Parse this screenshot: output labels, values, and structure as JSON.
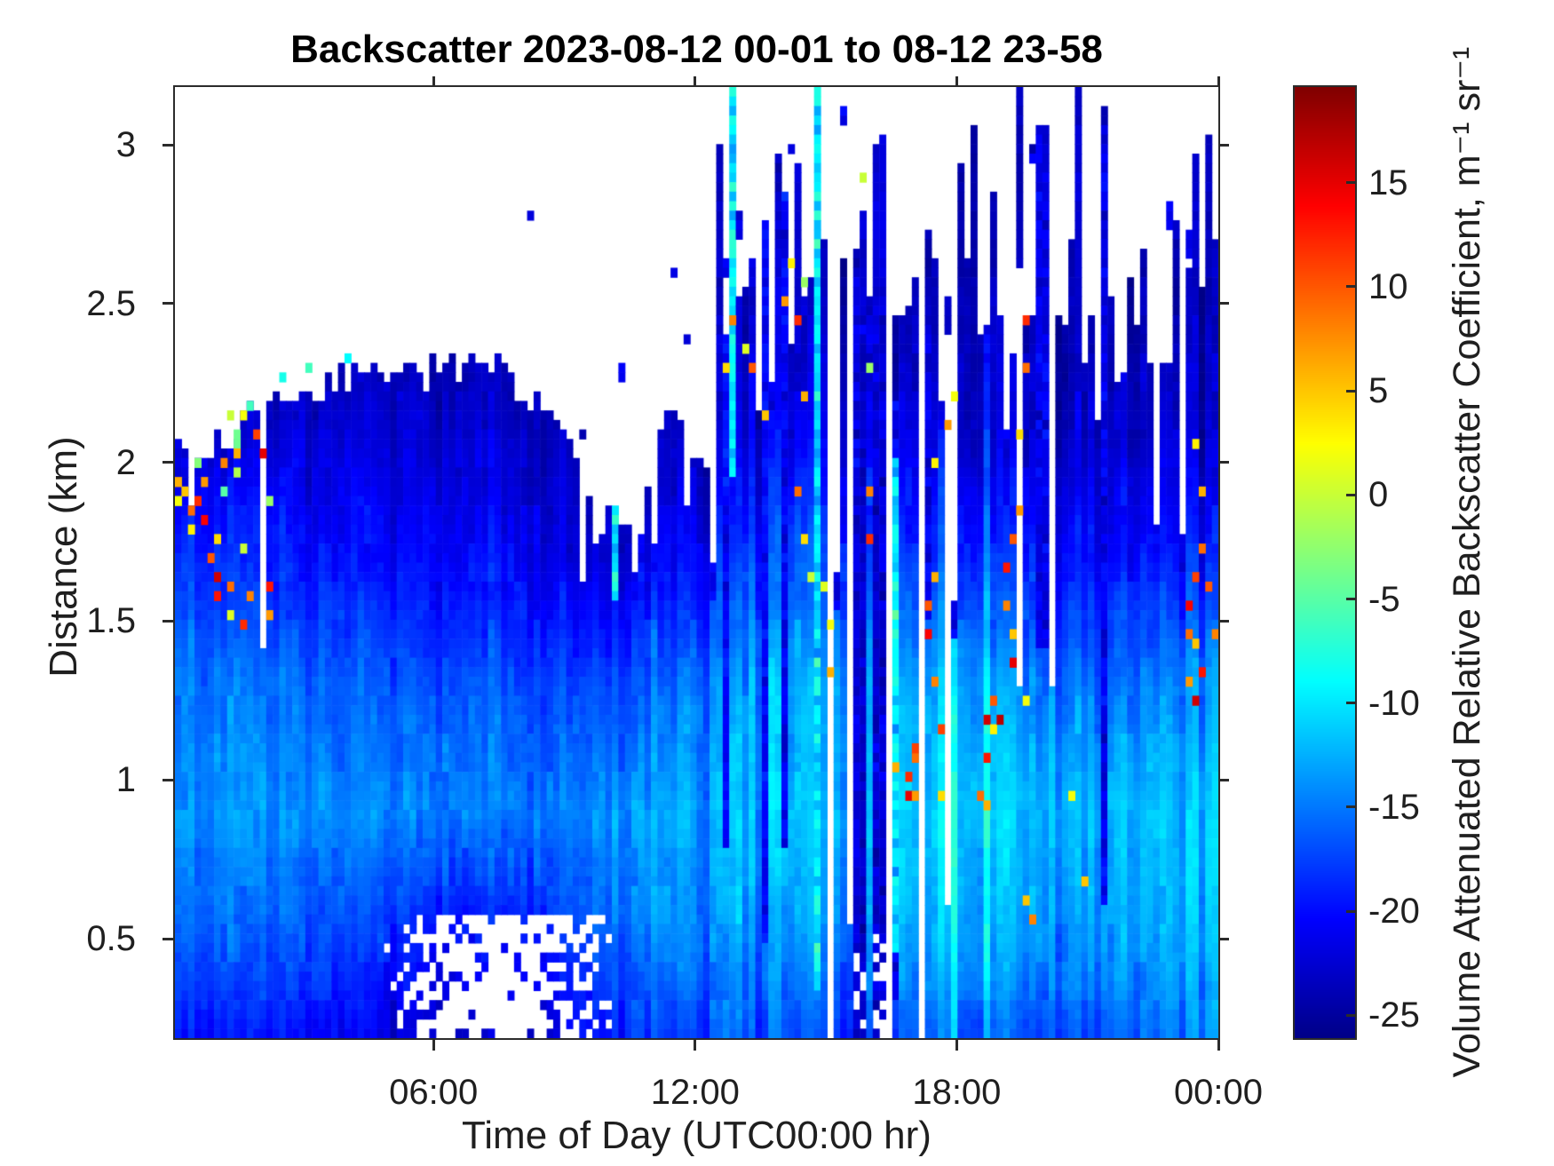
{
  "chart_data": {
    "type": "heatmap",
    "title": "Backscatter 2023-08-12 00-01 to 08-12 23-58",
    "xlabel": "Time of Day (UTC00:00 hr)",
    "ylabel": "Distance (km)",
    "x_axis": {
      "range_hours": [
        0.07,
        24
      ],
      "ticks": [
        {
          "label": "06:00",
          "hour": 6
        },
        {
          "label": "12:00",
          "hour": 12
        },
        {
          "label": "18:00",
          "hour": 18
        },
        {
          "label": "00:00",
          "hour": 24
        }
      ]
    },
    "y_axis": {
      "range_km": [
        0.187,
        3.182
      ],
      "ticks": [
        {
          "label": "0.5",
          "km": 0.5
        },
        {
          "label": "1",
          "km": 1
        },
        {
          "label": "1.5",
          "km": 1.5
        },
        {
          "label": "2",
          "km": 2
        },
        {
          "label": "2.5",
          "km": 2.5
        },
        {
          "label": "3",
          "km": 3
        }
      ]
    },
    "colorbar": {
      "label": "Volume Attenuated Relative Backscatter Coefficient, m⁻¹ sr⁻¹",
      "colormap": "jet",
      "vmin": -26.1,
      "vmax": 19.6,
      "ticks": [
        {
          "label": "15",
          "v": 15
        },
        {
          "label": "10",
          "v": 10
        },
        {
          "label": "5",
          "v": 5
        },
        {
          "label": "0",
          "v": 0
        },
        {
          "label": "-5",
          "v": -5
        },
        {
          "label": "-10",
          "v": -10
        },
        {
          "label": "-15",
          "v": -15
        },
        {
          "label": "-20",
          "v": -20
        },
        {
          "label": "-25",
          "v": -25
        }
      ]
    },
    "noise_seed": 1337,
    "grid_cols": 160,
    "grid_rows": 100,
    "profile_heights": [
      0.2,
      0.5,
      0.9,
      1.3,
      1.7,
      2.1,
      2.5,
      3.0
    ],
    "profile_format": "[t_hour, layer_top_km, backscatter_dB_at_profile_heights...]",
    "profile": [
      [
        0.0,
        2.06,
        -19,
        -15.5,
        -13.2,
        -14.5,
        -17.5,
        -22.5,
        -24,
        -24
      ],
      [
        0.7,
        2.0,
        -19,
        -15.5,
        -13.2,
        -14.5,
        -18,
        -22.5,
        -24,
        -24
      ],
      [
        1.5,
        2.12,
        -19.5,
        -16,
        -13.5,
        -15,
        -18.5,
        -22.5,
        -24,
        -24
      ],
      [
        2.5,
        2.22,
        -19.5,
        -16.5,
        -13.8,
        -15.5,
        -19,
        -22,
        -24,
        -24
      ],
      [
        3.5,
        2.26,
        -20,
        -17,
        -14,
        -16,
        -19.5,
        -22.5,
        -24,
        -24
      ],
      [
        4.5,
        2.28,
        -21,
        -18,
        -14.2,
        -16,
        -20,
        -22.5,
        -24,
        -24
      ],
      [
        5.5,
        2.3,
        -22.5,
        -19.5,
        -14.5,
        -16.5,
        -20,
        -22.5,
        -24,
        -24
      ],
      [
        6.5,
        2.28,
        -23,
        -20,
        -14.8,
        -16.5,
        -20.5,
        -23,
        -24,
        -24
      ],
      [
        7.5,
        2.3,
        -23,
        -20,
        -14.8,
        -16.5,
        -20.5,
        -23,
        -24,
        -24
      ],
      [
        8.5,
        2.18,
        -22,
        -18.5,
        -14.5,
        -17,
        -21,
        -23,
        -24,
        -24
      ],
      [
        9.3,
        2.02,
        -20.5,
        -17,
        -14.2,
        -17,
        -21.5,
        -24,
        -24,
        -24
      ],
      [
        9.9,
        1.8,
        -19.5,
        -16,
        -14,
        -17.5,
        -22,
        -24,
        -24,
        -24
      ],
      [
        10.6,
        1.82,
        -18.5,
        -15.5,
        -13.8,
        -17,
        -22,
        -24,
        -24,
        -24
      ],
      [
        11.4,
        1.98,
        -18,
        -15,
        -13.3,
        -16,
        -21,
        -23.5,
        -24,
        -24
      ],
      [
        12.3,
        2.15,
        -17,
        -14.5,
        -12.8,
        -14.5,
        -19.5,
        -23,
        -24,
        -24
      ],
      [
        13.3,
        2.45,
        -16.5,
        -13.5,
        -11.5,
        -13,
        -17.5,
        -21.5,
        -23.5,
        -23.5
      ],
      [
        14.4,
        2.75,
        -16,
        -13,
        -10.8,
        -12,
        -16,
        -20.5,
        -23,
        -23
      ],
      [
        15.5,
        2.55,
        -17.5,
        -14.5,
        -12.5,
        -13.5,
        -17.5,
        -21,
        -23,
        -23
      ],
      [
        16.6,
        2.35,
        -16,
        -13,
        -11.2,
        -13,
        -18,
        -22,
        -23.5,
        -23.5
      ],
      [
        17.5,
        2.42,
        -15.5,
        -12.5,
        -11,
        -12.8,
        -18,
        -22,
        -23.5,
        -23.5
      ],
      [
        18.5,
        2.52,
        -16,
        -12.8,
        -11.2,
        -13.2,
        -18.5,
        -22.5,
        -23.5,
        -23.5
      ],
      [
        19.5,
        2.55,
        -16.5,
        -13.2,
        -11.5,
        -13.8,
        -19,
        -22.5,
        -23.5,
        -23.5
      ],
      [
        20.5,
        2.48,
        -16.5,
        -13.3,
        -12,
        -14.8,
        -19.5,
        -23,
        -24,
        -24
      ],
      [
        21.5,
        2.52,
        -16,
        -13.5,
        -12.3,
        -15.2,
        -20,
        -23,
        -24,
        -24
      ],
      [
        22.5,
        2.48,
        -15.5,
        -13,
        -12,
        -14.8,
        -19.5,
        -23,
        -24,
        -24
      ],
      [
        23.4,
        2.55,
        -14.5,
        -12,
        -11.3,
        -14,
        -19,
        -23,
        -24,
        -24
      ],
      [
        24.0,
        2.6,
        -13.5,
        -11.3,
        -10.8,
        -13.5,
        -19,
        -23,
        -24,
        -24
      ]
    ],
    "upper_clouds_format": "[t_hour, center_km, width_hr, depth_km]",
    "upper_clouds": [
      [
        1.25,
        3.0,
        0.08,
        0.05
      ],
      [
        2.95,
        2.9,
        0.06,
        0.04
      ],
      [
        4.55,
        2.49,
        0.07,
        0.04
      ],
      [
        5.6,
        2.35,
        0.06,
        0.04
      ],
      [
        8.2,
        2.78,
        0.07,
        0.05
      ],
      [
        10.35,
        2.28,
        0.12,
        0.08
      ],
      [
        11.15,
        2.45,
        0.1,
        0.07
      ],
      [
        11.5,
        2.62,
        0.08,
        0.06
      ],
      [
        11.85,
        2.35,
        0.14,
        0.1
      ],
      [
        12.2,
        2.5,
        0.1,
        0.08
      ],
      [
        12.45,
        2.72,
        0.08,
        0.06
      ],
      [
        12.7,
        2.58,
        0.1,
        0.1
      ],
      [
        13.0,
        2.75,
        0.1,
        0.08
      ],
      [
        13.35,
        2.62,
        0.12,
        0.12
      ],
      [
        13.7,
        3.1,
        0.06,
        0.05
      ],
      [
        13.9,
        2.9,
        0.08,
        0.07
      ],
      [
        14.2,
        3.0,
        0.08,
        0.06
      ],
      [
        15.15,
        2.9,
        0.05,
        0.08
      ],
      [
        15.4,
        3.1,
        0.05,
        0.05
      ],
      [
        16.1,
        3.12,
        0.05,
        0.06
      ],
      [
        16.85,
        2.9,
        0.05,
        0.05
      ],
      [
        17.9,
        2.8,
        0.06,
        0.06
      ],
      [
        18.6,
        2.75,
        0.07,
        0.06
      ],
      [
        19.75,
        2.95,
        0.1,
        0.1
      ],
      [
        19.95,
        3.08,
        0.08,
        0.07
      ],
      [
        20.3,
        2.95,
        0.07,
        0.06
      ],
      [
        22.35,
        2.92,
        0.09,
        0.12
      ],
      [
        22.85,
        2.78,
        0.1,
        0.1
      ],
      [
        23.3,
        2.68,
        0.08,
        0.08
      ],
      [
        23.75,
        2.72,
        0.07,
        0.06
      ]
    ],
    "specks_format": "[t_hour, km, dB]",
    "specks": [
      [
        0.12,
        1.95,
        6
      ],
      [
        0.18,
        1.88,
        2
      ],
      [
        0.35,
        1.92,
        5
      ],
      [
        0.42,
        1.85,
        9
      ],
      [
        0.5,
        1.78,
        3
      ],
      [
        0.55,
        2.0,
        -3
      ],
      [
        0.62,
        1.88,
        12
      ],
      [
        0.7,
        1.95,
        7
      ],
      [
        0.78,
        1.82,
        14
      ],
      [
        0.9,
        1.7,
        10
      ],
      [
        0.98,
        1.64,
        16
      ],
      [
        1.02,
        1.58,
        13
      ],
      [
        1.1,
        1.75,
        4
      ],
      [
        1.12,
        1.9,
        -5
      ],
      [
        1.18,
        2.0,
        8
      ],
      [
        1.28,
        1.52,
        1
      ],
      [
        1.35,
        2.14,
        0
      ],
      [
        1.4,
        1.6,
        9
      ],
      [
        1.45,
        2.1,
        -4
      ],
      [
        1.48,
        2.06,
        -4
      ],
      [
        1.52,
        1.98,
        -1
      ],
      [
        1.55,
        2.04,
        6
      ],
      [
        1.6,
        2.15,
        2
      ],
      [
        1.62,
        1.72,
        0
      ],
      [
        1.7,
        1.5,
        12
      ],
      [
        1.75,
        2.18,
        -6
      ],
      [
        1.82,
        1.58,
        8
      ],
      [
        1.95,
        2.08,
        11
      ],
      [
        2.05,
        2.02,
        15
      ],
      [
        2.18,
        1.6,
        13
      ],
      [
        2.25,
        1.52,
        7
      ],
      [
        2.3,
        1.88,
        -2
      ],
      [
        2.6,
        2.26,
        -8
      ],
      [
        3.1,
        2.3,
        -6
      ],
      [
        4.1,
        2.32,
        -9
      ],
      [
        12.75,
        2.3,
        4
      ],
      [
        12.9,
        2.44,
        8
      ],
      [
        13.1,
        2.36,
        1
      ],
      [
        13.3,
        2.3,
        10
      ],
      [
        13.55,
        2.15,
        5
      ],
      [
        14.1,
        2.52,
        7
      ],
      [
        14.2,
        2.64,
        3
      ],
      [
        14.3,
        2.44,
        12
      ],
      [
        14.45,
        2.56,
        -2
      ],
      [
        14.5,
        2.2,
        6
      ],
      [
        14.35,
        1.9,
        9
      ],
      [
        14.45,
        1.75,
        4
      ],
      [
        14.6,
        1.65,
        0
      ],
      [
        14.95,
        1.62,
        1
      ],
      [
        15.05,
        1.5,
        2
      ],
      [
        15.1,
        1.35,
        6
      ],
      [
        15.9,
        2.9,
        0
      ],
      [
        15.95,
        2.3,
        -2
      ],
      [
        16.0,
        1.9,
        8
      ],
      [
        16.05,
        1.75,
        12
      ],
      [
        16.6,
        1.05,
        6
      ],
      [
        16.88,
        1.02,
        12
      ],
      [
        16.93,
        0.94,
        15
      ],
      [
        16.98,
        1.06,
        9
      ],
      [
        17.03,
        0.96,
        7
      ],
      [
        17.08,
        1.1,
        11
      ],
      [
        17.3,
        1.56,
        10
      ],
      [
        17.36,
        1.46,
        14
      ],
      [
        17.42,
        1.64,
        6
      ],
      [
        17.47,
        2.0,
        3
      ],
      [
        17.52,
        1.3,
        8
      ],
      [
        17.57,
        1.16,
        11
      ],
      [
        17.62,
        0.95,
        4
      ],
      [
        17.85,
        2.12,
        7
      ],
      [
        17.9,
        2.2,
        2
      ],
      [
        18.55,
        0.95,
        9
      ],
      [
        18.62,
        1.08,
        13
      ],
      [
        18.68,
        1.2,
        16
      ],
      [
        18.74,
        0.92,
        6
      ],
      [
        18.8,
        1.26,
        10
      ],
      [
        18.87,
        1.15,
        3
      ],
      [
        18.98,
        1.2,
        17
      ],
      [
        19.1,
        1.56,
        8
      ],
      [
        19.16,
        1.66,
        13
      ],
      [
        19.22,
        1.46,
        5
      ],
      [
        19.28,
        1.76,
        10
      ],
      [
        19.34,
        1.36,
        15
      ],
      [
        19.4,
        1.86,
        7
      ],
      [
        19.46,
        2.1,
        4
      ],
      [
        19.52,
        2.3,
        9
      ],
      [
        19.56,
        2.44,
        12
      ],
      [
        19.6,
        1.25,
        2
      ],
      [
        19.65,
        0.62,
        5
      ],
      [
        19.7,
        0.55,
        8
      ],
      [
        20.6,
        0.95,
        2
      ],
      [
        20.9,
        0.68,
        5
      ],
      [
        23.28,
        1.46,
        9
      ],
      [
        23.33,
        1.56,
        14
      ],
      [
        23.38,
        1.3,
        7
      ],
      [
        23.43,
        1.64,
        11
      ],
      [
        23.48,
        1.26,
        16
      ],
      [
        23.53,
        1.42,
        5
      ],
      [
        23.58,
        1.74,
        9
      ],
      [
        23.63,
        1.35,
        13
      ],
      [
        23.68,
        1.9,
        6
      ],
      [
        23.5,
        2.05,
        3
      ],
      [
        23.85,
        1.6,
        10
      ],
      [
        23.9,
        1.45,
        8
      ]
    ],
    "streaks_format": "[t_hour, width_hr, km_low, km_high, dB]",
    "streaks": [
      [
        10.17,
        0.06,
        1.55,
        1.85,
        -10
      ],
      [
        12.82,
        0.09,
        1.95,
        3.19,
        -10
      ],
      [
        14.85,
        0.1,
        0.35,
        3.19,
        -10
      ],
      [
        15.93,
        0.1,
        0.2,
        3.19,
        -7
      ],
      [
        16.62,
        0.07,
        0.45,
        2.0,
        -10
      ]
    ],
    "gaps_format": "[t0, t1, km_low, km_high] data-void white",
    "gaps": [
      [
        0.42,
        0.52,
        1.86,
        2.12
      ],
      [
        2.0,
        2.14,
        1.42,
        2.26
      ],
      [
        9.38,
        9.52,
        1.62,
        2.06
      ],
      [
        12.28,
        12.38,
        1.85,
        2.3
      ],
      [
        15.05,
        15.2,
        0.18,
        3.19
      ],
      [
        15.47,
        15.58,
        0.55,
        3.19
      ],
      [
        16.33,
        16.5,
        0.18,
        3.19
      ],
      [
        16.75,
        16.82,
        1.3,
        2.6
      ],
      [
        17.1,
        17.26,
        0.18,
        3.19
      ],
      [
        17.5,
        17.58,
        0.4,
        2.25
      ],
      [
        17.76,
        17.84,
        0.6,
        2.4
      ],
      [
        18.25,
        18.33,
        0.85,
        2.1
      ],
      [
        18.9,
        18.96,
        1.35,
        2.5
      ],
      [
        19.0,
        19.08,
        1.1,
        2.7
      ],
      [
        19.42,
        19.5,
        1.3,
        2.62
      ],
      [
        20.12,
        20.26,
        1.3,
        3.19
      ],
      [
        23.18,
        23.26,
        1.05,
        2.6
      ],
      [
        23.52,
        23.58,
        1.2,
        2.2
      ]
    ],
    "dark_columns_format": "[t0, t1, km_low, km_high, dB]",
    "dark_columns": [
      [
        12.6,
        12.72,
        0.8,
        2.4,
        -20.5
      ],
      [
        13.55,
        13.68,
        0.5,
        2.75,
        -20.5
      ],
      [
        14.0,
        14.1,
        0.8,
        2.85,
        -21
      ],
      [
        15.6,
        15.78,
        0.18,
        2.6,
        -22
      ],
      [
        15.8,
        15.9,
        0.18,
        2.45,
        -23
      ],
      [
        16.02,
        16.3,
        0.18,
        2.55,
        -22.5
      ],
      [
        16.52,
        16.62,
        0.3,
        2.2,
        -21
      ],
      [
        17.3,
        17.45,
        1.5,
        2.45,
        -21.5
      ],
      [
        18.15,
        18.24,
        0.9,
        2.55,
        -21.5
      ],
      [
        19.85,
        20.1,
        1.4,
        3.06,
        -21.5
      ],
      [
        21.35,
        21.5,
        0.6,
        3.06,
        -21.5
      ],
      [
        22.3,
        22.42,
        1.8,
        2.95,
        -21.5
      ]
    ],
    "hole_regions_format": "[t0, t1, km_low, km_high, probability] white speckle voids",
    "hole_regions": [
      [
        4.85,
        10.1,
        0.18,
        0.58,
        0.85
      ],
      [
        15.6,
        15.9,
        0.18,
        0.45,
        0.35
      ],
      [
        16.05,
        16.45,
        0.18,
        0.52,
        0.5
      ]
    ]
  }
}
